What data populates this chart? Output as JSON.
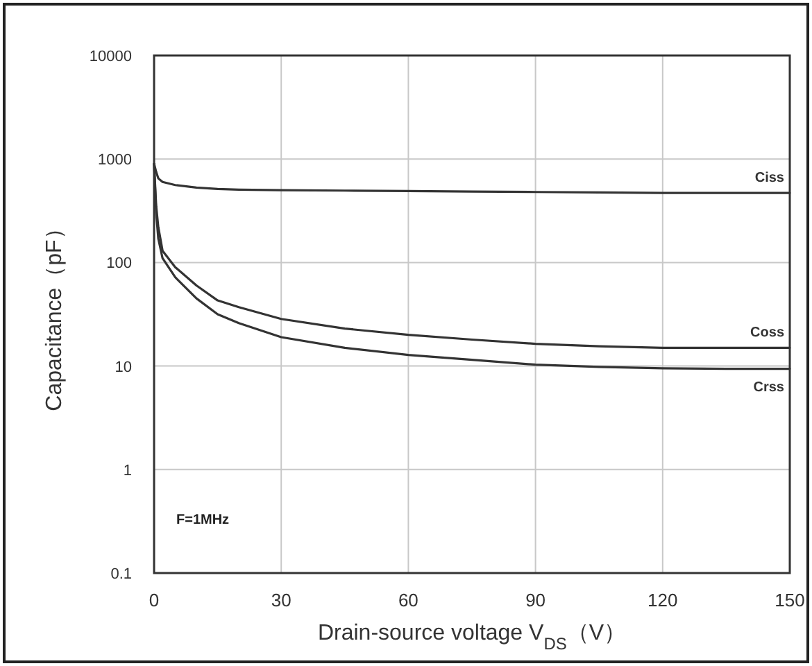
{
  "chart_data": {
    "type": "line",
    "xlabel": "Drain-source voltage V$_{DS}$（V）",
    "ylabel": "Capacitance（pF）",
    "annotations": [
      "F=1MHz"
    ],
    "log": "y",
    "grid": true,
    "legend": false,
    "marker": "none",
    "line_style": "solid",
    "x": [
      0,
      0.5,
      1,
      2,
      5,
      10,
      15,
      20,
      30,
      45,
      60,
      75,
      90,
      105,
      120,
      135,
      150
    ],
    "xlim": [
      0,
      150
    ],
    "xticks": [
      0,
      30,
      60,
      90,
      120,
      150
    ],
    "ylim": [
      0.1,
      10000
    ],
    "yticks": [
      0.1,
      1,
      10,
      100,
      1000,
      10000
    ],
    "series": [
      {
        "name": "Ciss",
        "color": "#333333",
        "values": [
          900,
          750,
          650,
          600,
          560,
          530,
          513,
          505,
          500,
          495,
          490,
          485,
          480,
          475,
          470,
          470,
          470
        ]
      },
      {
        "name": "Coss",
        "color": "#333333",
        "values": [
          900,
          350,
          220,
          130,
          90,
          60,
          43,
          37,
          28.5,
          23,
          20,
          18,
          16.4,
          15.5,
          15,
          15,
          15
        ]
      },
      {
        "name": "Crss",
        "color": "#333333",
        "values": [
          900,
          300,
          170,
          110,
          72,
          45,
          31.6,
          26,
          19,
          15,
          12.8,
          11.5,
          10.3,
          9.8,
          9.5,
          9.4,
          9.4
        ]
      }
    ]
  }
}
